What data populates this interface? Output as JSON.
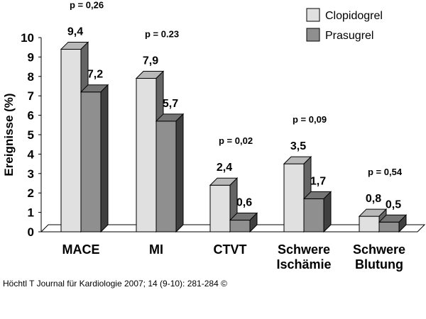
{
  "chart_data": {
    "type": "bar",
    "ylabel": "Ereignisse (%)",
    "ylim": [
      0,
      10
    ],
    "yticks": [
      0,
      1,
      2,
      3,
      4,
      5,
      6,
      7,
      8,
      9,
      10
    ],
    "grid": false,
    "legend_position": "top-right",
    "categories": [
      [
        "MACE"
      ],
      [
        "MI"
      ],
      [
        "CTVT"
      ],
      [
        "Schwere",
        "Ischämie"
      ],
      [
        "Schwere",
        "Blutung"
      ]
    ],
    "series": [
      {
        "name": "Clopidogrel",
        "color": "#e0e0e0",
        "values": [
          9.4,
          7.9,
          2.4,
          3.5,
          0.8
        ]
      },
      {
        "name": "Prasugrel",
        "color": "#8f8f8f",
        "values": [
          7.2,
          5.7,
          0.6,
          1.7,
          0.5
        ]
      }
    ],
    "value_labels": [
      [
        "9,4",
        "7,9",
        "2,4",
        "3,5",
        "0,8"
      ],
      [
        "7,2",
        "5,7",
        "0,6",
        "1,7",
        "0,5"
      ]
    ],
    "p_values": [
      "p = 0,26",
      "p = 0.23",
      "p = 0,02",
      "p = 0,09",
      "p = 0,54"
    ]
  },
  "caption": "Höchtl T Journal für Kardiologie 2007; 14 (9-10): 281-284 ©"
}
